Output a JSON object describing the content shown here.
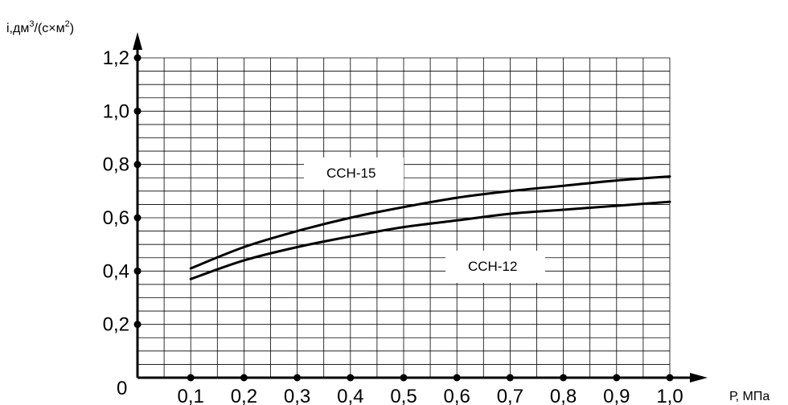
{
  "chart_data": {
    "type": "line",
    "ylabel": {
      "base": "i,дм",
      "sup1": "3",
      "mid": "/(с×м",
      "sup2": "2",
      "end": ")"
    },
    "xlabel": "Р, МПа",
    "origin_label": "0",
    "xlim": [
      0,
      1.0
    ],
    "ylim": [
      0,
      1.2
    ],
    "x_ticks": [
      "0,1",
      "0,2",
      "0,3",
      "0,4",
      "0,5",
      "0,6",
      "0,7",
      "0,8",
      "0,9",
      "1,0"
    ],
    "y_ticks": [
      "0,2",
      "0,4",
      "0,6",
      "0,8",
      "1,0",
      "1,2"
    ],
    "grid": true,
    "x": [
      0.1,
      0.2,
      0.3,
      0.4,
      0.5,
      0.6,
      0.7,
      0.8,
      0.9,
      1.0
    ],
    "series": [
      {
        "name": "ССН-15",
        "values": [
          0.41,
          0.49,
          0.55,
          0.6,
          0.64,
          0.675,
          0.7,
          0.72,
          0.74,
          0.755
        ]
      },
      {
        "name": "ССН-12",
        "values": [
          0.37,
          0.44,
          0.49,
          0.53,
          0.565,
          0.59,
          0.615,
          0.63,
          0.645,
          0.66
        ]
      }
    ]
  }
}
